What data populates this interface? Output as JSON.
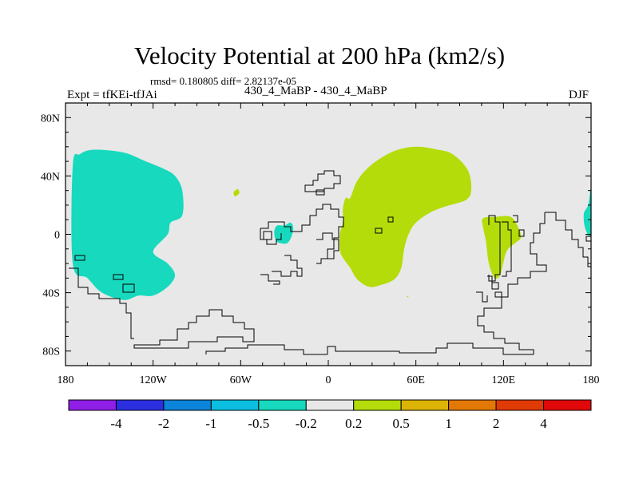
{
  "header": {
    "title": "Velocity Potential at 200 hPa (km2/s)",
    "stats": "rmsd= 0.180805 diff= 2.82137e-05",
    "left": "Expt = tfKEi-tfJAi",
    "center": "430_4_MaBP - 430_4_MaBP",
    "right": "DJF"
  },
  "chart_data": {
    "type": "heatmap",
    "title": "Velocity Potential at 200 hPa (km2/s)",
    "map_projection": "cylindrical equidistant",
    "xlim": [
      -180,
      180
    ],
    "ylim": [
      -90,
      90
    ],
    "x_ticks": [
      {
        "value": -180,
        "label": "180"
      },
      {
        "value": -120,
        "label": "120W"
      },
      {
        "value": -60,
        "label": "60W"
      },
      {
        "value": 0,
        "label": "0"
      },
      {
        "value": 60,
        "label": "60E"
      },
      {
        "value": 120,
        "label": "120E"
      },
      {
        "value": 180,
        "label": "180"
      }
    ],
    "y_ticks": [
      {
        "value": 80,
        "label": "80N"
      },
      {
        "value": 40,
        "label": "40N"
      },
      {
        "value": 0,
        "label": "0"
      },
      {
        "value": -40,
        "label": "40S"
      },
      {
        "value": -80,
        "label": "80S"
      }
    ],
    "background_color": "#e8e8e8",
    "contour_levels": [
      -4,
      -2,
      -1,
      -0.5,
      -0.2,
      0.2,
      0.5,
      1,
      2,
      4
    ],
    "colorbar": {
      "colors": [
        "#8f1fe6",
        "#2b2fe0",
        "#0c84da",
        "#0bbee0",
        "#17d9be",
        "#e8e8e8",
        "#b4dc0a",
        "#dcb405",
        "#e27806",
        "#e03a05",
        "#e00808"
      ],
      "labels": [
        "-4",
        "-2",
        "-1",
        "-0.5",
        "-0.2",
        "0.2",
        "0.5",
        "1",
        "2",
        "4"
      ]
    },
    "regions": [
      {
        "name": "negative anomaly over eastern Pacific",
        "level_range": [
          -0.5,
          -0.2
        ],
        "color": "#17d9be",
        "lon": [
          -175,
          -170,
          -160,
          -140,
          -125,
          -113,
          -105,
          -100,
          -100,
          -108,
          -110,
          -120,
          -110,
          -105,
          -110,
          -120,
          -130,
          -140,
          -155,
          -165,
          -175
        ],
        "lat": [
          47,
          55,
          58,
          56,
          50,
          45,
          40,
          30,
          13,
          8,
          0,
          -12,
          -20,
          -28,
          -36,
          -42,
          -42,
          -45,
          -40,
          -30,
          -20
        ]
      },
      {
        "name": "negative anomaly near Gulf of Guinea",
        "level_range": [
          -0.5,
          -0.2
        ],
        "color": "#17d9be",
        "lon": [
          -30,
          -26,
          -24,
          -25,
          -28,
          -33,
          -36,
          -37,
          -35
        ],
        "lat": [
          6,
          8,
          5,
          -1,
          -6,
          -6,
          -4,
          2,
          6
        ]
      },
      {
        "name": "negative anomaly edge at date line",
        "level_range": [
          -0.5,
          -0.2
        ],
        "color": "#17d9be",
        "lon": [
          180,
          178,
          175,
          176,
          180
        ],
        "lat": [
          31,
          20,
          14,
          4,
          0
        ]
      },
      {
        "name": "positive anomaly over Africa and Asia",
        "level_range": [
          0.2,
          0.5
        ],
        "color": "#b4dc0a",
        "lon": [
          15,
          20,
          30,
          45,
          60,
          75,
          85,
          95,
          98,
          95,
          80,
          70,
          60,
          55,
          52,
          50,
          45,
          35,
          28,
          20,
          15,
          10,
          8,
          8,
          10,
          10,
          12
        ],
        "lat": [
          25,
          37,
          48,
          57,
          60,
          58,
          55,
          45,
          33,
          24,
          19,
          15,
          8,
          0,
          -10,
          -23,
          -31,
          -35,
          -36,
          -31,
          -23,
          -16,
          -11,
          0,
          9,
          18,
          25
        ]
      },
      {
        "name": "positive anomaly over Indonesia",
        "level_range": [
          0.2,
          0.5
        ],
        "color": "#b4dc0a",
        "lon": [
          106,
          115,
          125,
          130,
          132,
          128,
          122,
          118,
          114,
          110,
          108,
          106
        ],
        "lat": [
          11,
          12,
          12,
          5,
          -2,
          -6,
          -12,
          -27,
          -30,
          -20,
          -5,
          5
        ]
      },
      {
        "name": "small positive spot over Atlantic",
        "level_range": [
          0.2,
          0.5
        ],
        "color": "#b4dc0a",
        "lon": [
          -65,
          -62,
          -61,
          -64,
          -65
        ],
        "lat": [
          29,
          31,
          28,
          26,
          29
        ]
      },
      {
        "name": "tiny positive spot",
        "level_range": [
          0.2,
          0.5
        ],
        "color": "#b4dc0a",
        "lon": [
          54,
          55,
          54
        ],
        "lat": [
          -42,
          -43,
          -43
        ]
      }
    ]
  }
}
